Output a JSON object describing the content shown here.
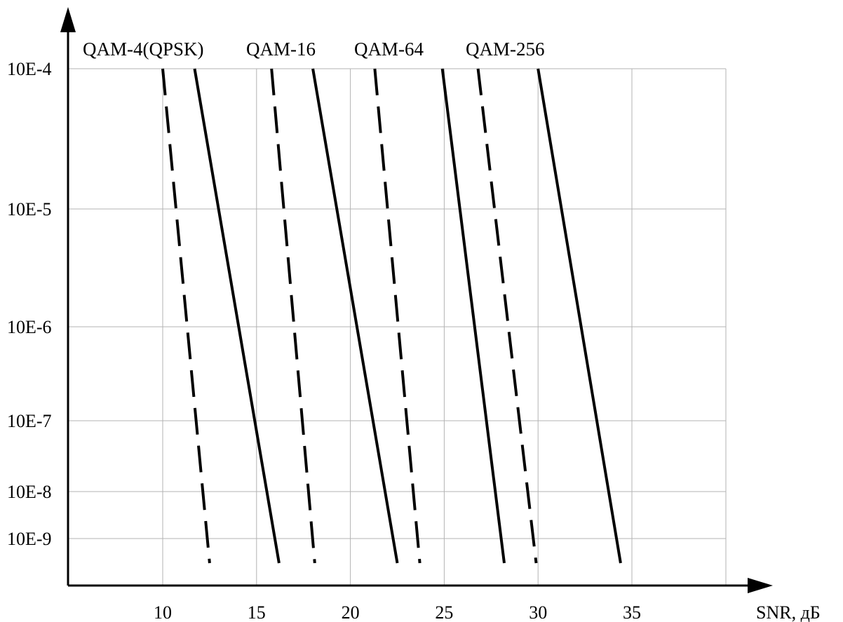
{
  "chart_data": {
    "type": "line",
    "title": "",
    "xlabel": "SNR, дБ",
    "ylabel": "",
    "xlim": [
      5,
      38
    ],
    "x_ticks": [
      10,
      15,
      20,
      25,
      30,
      35
    ],
    "x_tick_labels": [
      "10",
      "15",
      "20",
      "25",
      "30",
      "35"
    ],
    "y_ticks": [
      0.0001,
      1e-05,
      1e-06,
      1e-07,
      1e-08,
      1e-09
    ],
    "y_tick_labels": [
      "10E-4",
      "10E-5",
      "10E-6",
      "10E-7",
      "10E-8",
      "10E-9"
    ],
    "grid": true,
    "legend": "labels above curves",
    "series": [
      {
        "name": "QAM-4(QPSK)",
        "style": "dashed",
        "x": [
          10.0,
          12.5
        ],
        "y": [
          0.0001,
          3e-10
        ]
      },
      {
        "name": "QAM-4(QPSK)",
        "style": "solid",
        "x": [
          11.7,
          16.2
        ],
        "y": [
          0.0001,
          3e-10
        ]
      },
      {
        "name": "QAM-16",
        "style": "dashed",
        "x": [
          15.8,
          18.1
        ],
        "y": [
          0.0001,
          3e-10
        ]
      },
      {
        "name": "QAM-16",
        "style": "solid",
        "x": [
          18.0,
          22.5
        ],
        "y": [
          0.0001,
          3e-10
        ]
      },
      {
        "name": "QAM-64",
        "style": "dashed",
        "x": [
          21.3,
          23.7
        ],
        "y": [
          0.0001,
          3e-10
        ]
      },
      {
        "name": "QAM-64",
        "style": "solid",
        "x": [
          24.9,
          28.2
        ],
        "y": [
          0.0001,
          3e-10
        ]
      },
      {
        "name": "QAM-256",
        "style": "dashed",
        "x": [
          26.8,
          29.9
        ],
        "y": [
          0.0001,
          3e-10
        ]
      },
      {
        "name": "QAM-256",
        "style": "solid",
        "x": [
          30.0,
          34.4
        ],
        "y": [
          0.0001,
          3e-10
        ]
      }
    ],
    "series_labels": [
      "QAM-4(QPSK)",
      "QAM-16",
      "QAM-64",
      "QAM-256"
    ]
  }
}
